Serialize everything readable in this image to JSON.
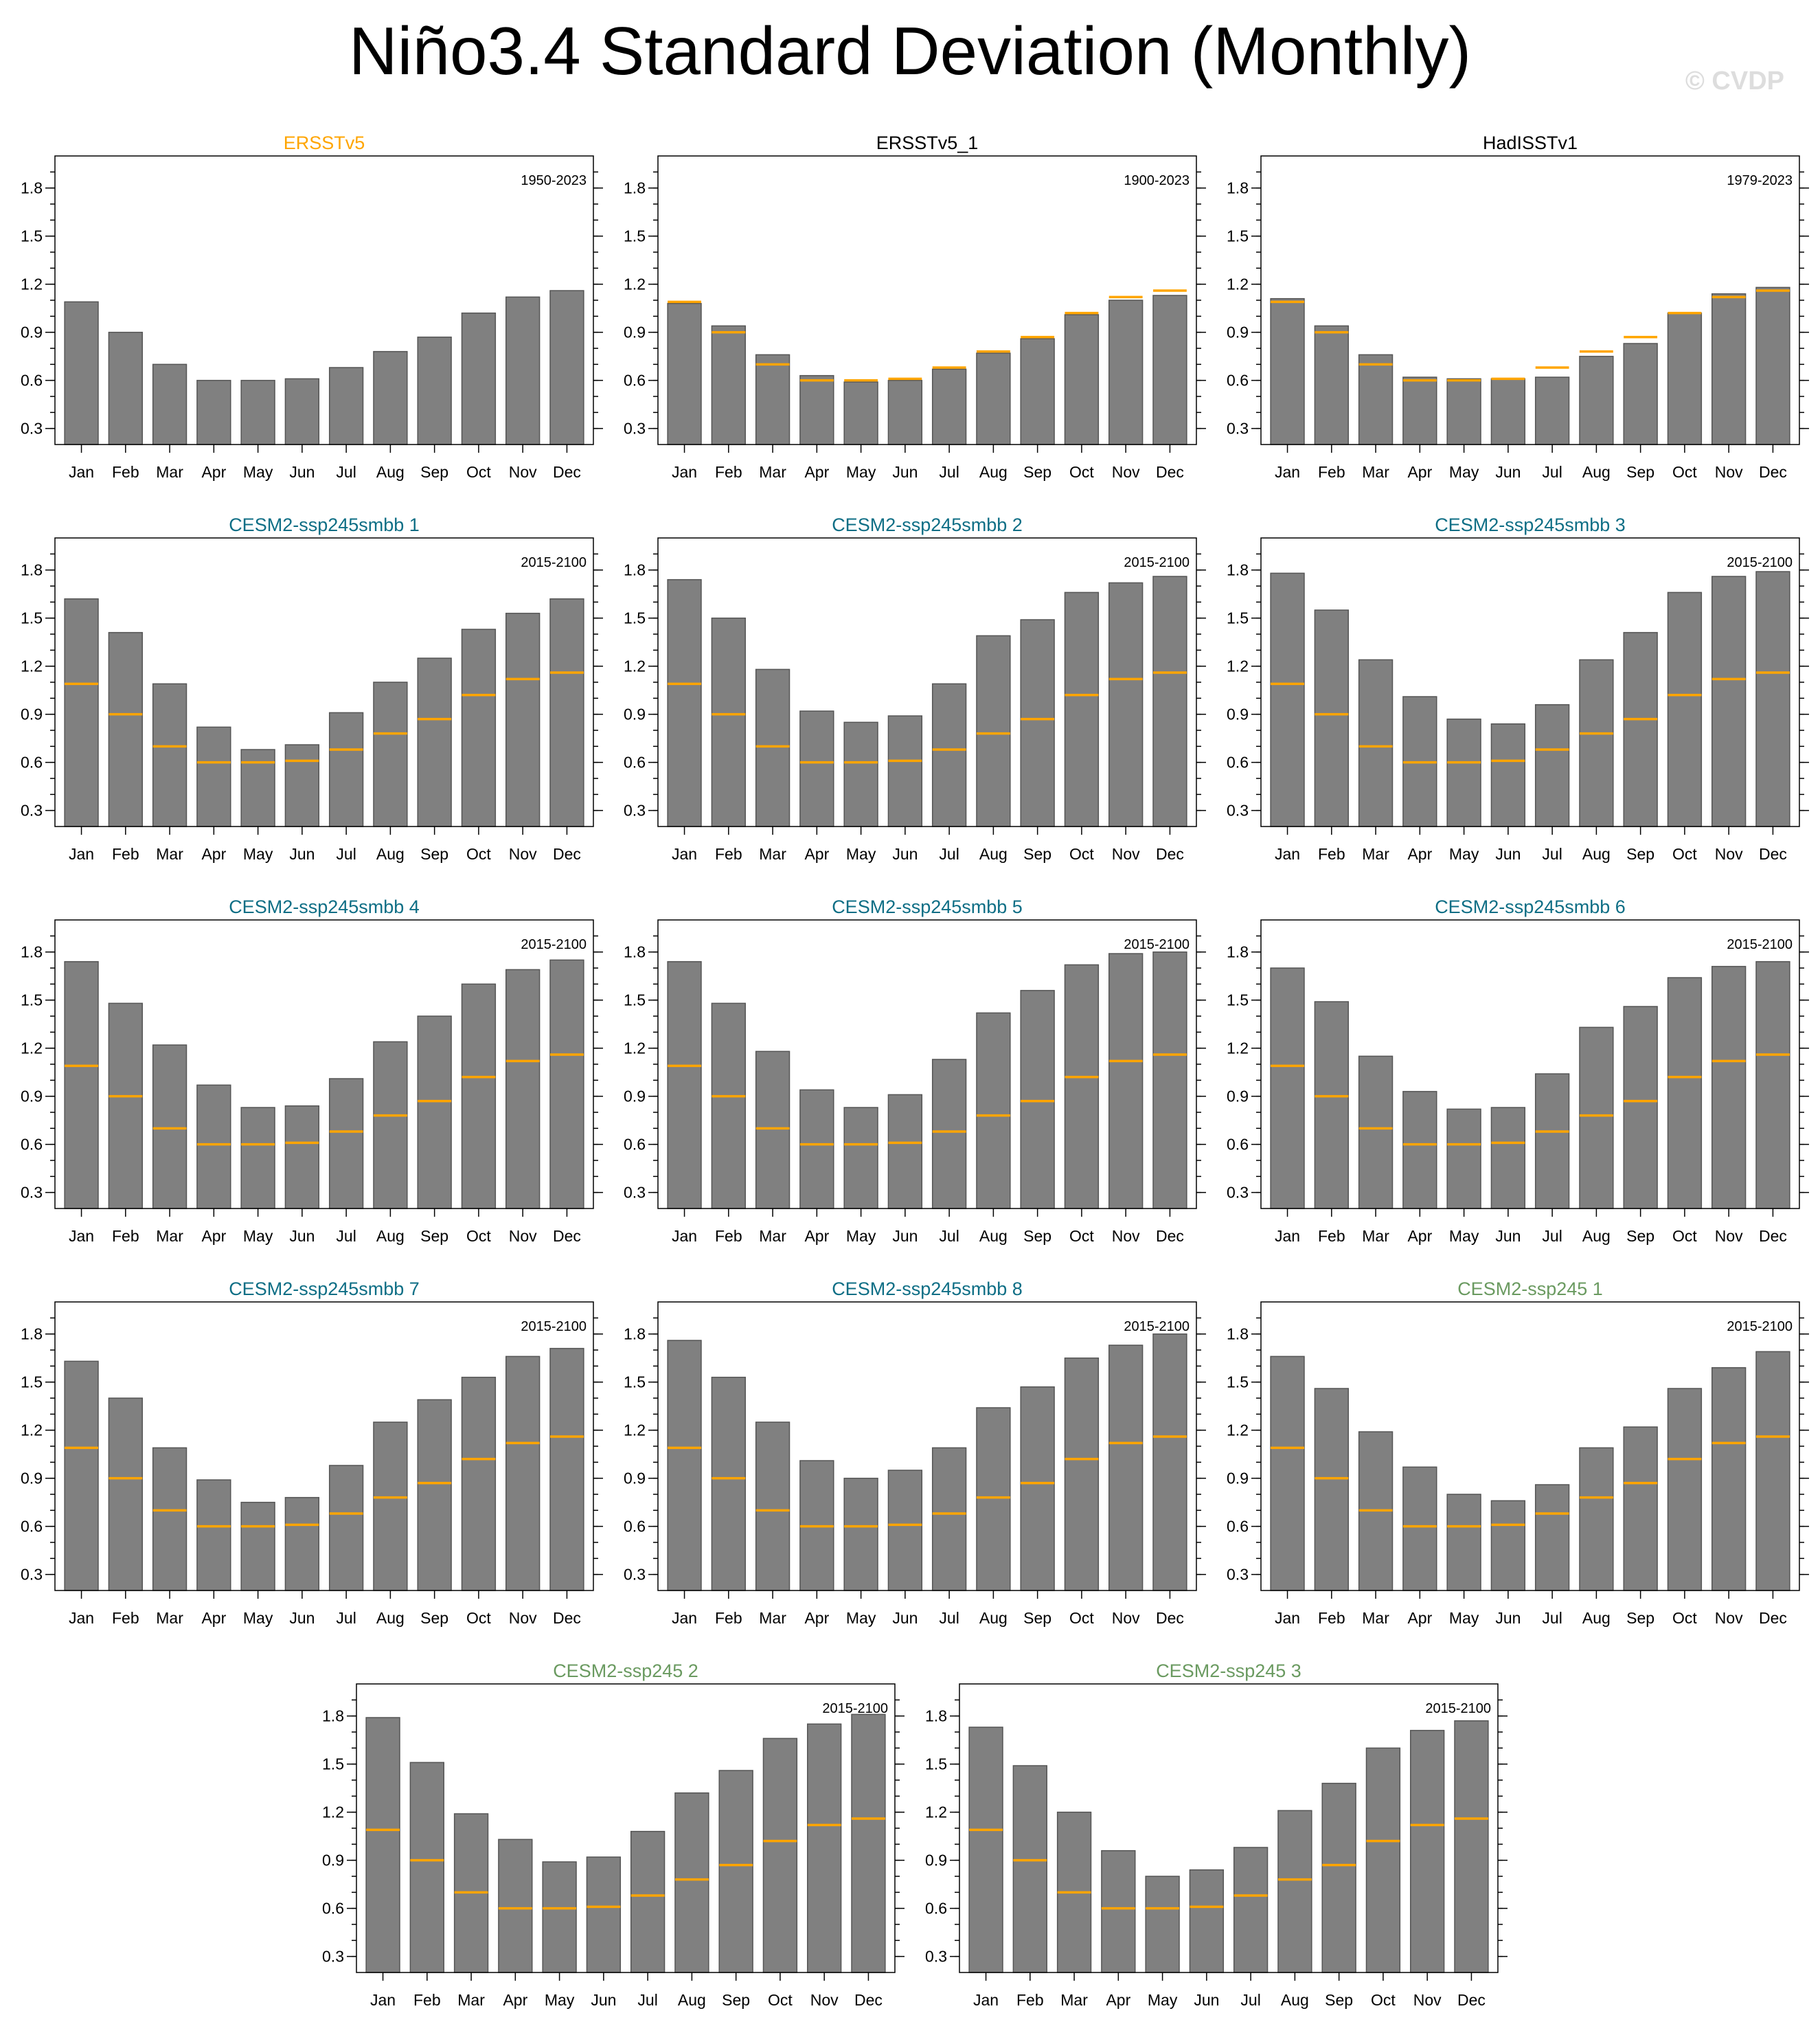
{
  "title": "Niño3.4 Standard Deviation (Monthly)",
  "watermark": "© CVDP",
  "colors": {
    "observation_title": "#ffa500",
    "obs_secondary_title": "#000000",
    "smbb_title": "#0e6e85",
    "ssp245_title": "#6a9a60",
    "bar_fill": "#808080",
    "reference_line": "#ffa500"
  },
  "chart_data": [
    {
      "type": "bar",
      "title": "ERSSTv5",
      "title_color": "#ffa500",
      "period": "1950-2023",
      "categories": [
        "Jan",
        "Feb",
        "Mar",
        "Apr",
        "May",
        "Jun",
        "Jul",
        "Aug",
        "Sep",
        "Oct",
        "Nov",
        "Dec"
      ],
      "values": [
        1.09,
        0.9,
        0.7,
        0.6,
        0.6,
        0.61,
        0.68,
        0.78,
        0.87,
        1.02,
        1.12,
        1.16
      ],
      "reference": null,
      "yticks": [
        "0.3",
        "0.6",
        "0.9",
        "1.2",
        "1.5",
        "1.8"
      ],
      "ylim": [
        0.2,
        2.0
      ]
    },
    {
      "type": "bar",
      "title": "ERSSTv5_1",
      "title_color": "#000000",
      "period": "1900-2023",
      "categories": [
        "Jan",
        "Feb",
        "Mar",
        "Apr",
        "May",
        "Jun",
        "Jul",
        "Aug",
        "Sep",
        "Oct",
        "Nov",
        "Dec"
      ],
      "values": [
        1.08,
        0.94,
        0.76,
        0.63,
        0.59,
        0.6,
        0.67,
        0.77,
        0.86,
        1.01,
        1.1,
        1.13
      ],
      "reference": [
        1.09,
        0.9,
        0.7,
        0.6,
        0.6,
        0.61,
        0.68,
        0.78,
        0.87,
        1.02,
        1.12,
        1.16
      ],
      "yticks": [
        "0.3",
        "0.6",
        "0.9",
        "1.2",
        "1.5",
        "1.8"
      ],
      "ylim": [
        0.2,
        2.0
      ]
    },
    {
      "type": "bar",
      "title": "HadISSTv1",
      "title_color": "#000000",
      "period": "1979-2023",
      "categories": [
        "Jan",
        "Feb",
        "Mar",
        "Apr",
        "May",
        "Jun",
        "Jul",
        "Aug",
        "Sep",
        "Oct",
        "Nov",
        "Dec"
      ],
      "values": [
        1.11,
        0.94,
        0.76,
        0.62,
        0.61,
        0.61,
        0.62,
        0.75,
        0.83,
        1.02,
        1.14,
        1.18
      ],
      "reference": [
        1.09,
        0.9,
        0.7,
        0.6,
        0.6,
        0.61,
        0.68,
        0.78,
        0.87,
        1.02,
        1.12,
        1.16
      ],
      "yticks": [
        "0.3",
        "0.6",
        "0.9",
        "1.2",
        "1.5",
        "1.8"
      ],
      "ylim": [
        0.2,
        2.0
      ]
    },
    {
      "type": "bar",
      "title": "CESM2-ssp245smbb 1",
      "title_color": "#0e6e85",
      "period": "2015-2100",
      "categories": [
        "Jan",
        "Feb",
        "Mar",
        "Apr",
        "May",
        "Jun",
        "Jul",
        "Aug",
        "Sep",
        "Oct",
        "Nov",
        "Dec"
      ],
      "values": [
        1.62,
        1.41,
        1.09,
        0.82,
        0.68,
        0.71,
        0.91,
        1.1,
        1.25,
        1.43,
        1.53,
        1.62
      ],
      "reference": [
        1.09,
        0.9,
        0.7,
        0.6,
        0.6,
        0.61,
        0.68,
        0.78,
        0.87,
        1.02,
        1.12,
        1.16
      ],
      "yticks": [
        "0.3",
        "0.6",
        "0.9",
        "1.2",
        "1.5",
        "1.8"
      ],
      "ylim": [
        0.2,
        2.0
      ]
    },
    {
      "type": "bar",
      "title": "CESM2-ssp245smbb 2",
      "title_color": "#0e6e85",
      "period": "2015-2100",
      "categories": [
        "Jan",
        "Feb",
        "Mar",
        "Apr",
        "May",
        "Jun",
        "Jul",
        "Aug",
        "Sep",
        "Oct",
        "Nov",
        "Dec"
      ],
      "values": [
        1.74,
        1.5,
        1.18,
        0.92,
        0.85,
        0.89,
        1.09,
        1.39,
        1.49,
        1.66,
        1.72,
        1.76
      ],
      "reference": [
        1.09,
        0.9,
        0.7,
        0.6,
        0.6,
        0.61,
        0.68,
        0.78,
        0.87,
        1.02,
        1.12,
        1.16
      ],
      "yticks": [
        "0.3",
        "0.6",
        "0.9",
        "1.2",
        "1.5",
        "1.8"
      ],
      "ylim": [
        0.2,
        2.0
      ]
    },
    {
      "type": "bar",
      "title": "CESM2-ssp245smbb 3",
      "title_color": "#0e6e85",
      "period": "2015-2100",
      "categories": [
        "Jan",
        "Feb",
        "Mar",
        "Apr",
        "May",
        "Jun",
        "Jul",
        "Aug",
        "Sep",
        "Oct",
        "Nov",
        "Dec"
      ],
      "values": [
        1.78,
        1.55,
        1.24,
        1.01,
        0.87,
        0.84,
        0.96,
        1.24,
        1.41,
        1.66,
        1.76,
        1.79
      ],
      "reference": [
        1.09,
        0.9,
        0.7,
        0.6,
        0.6,
        0.61,
        0.68,
        0.78,
        0.87,
        1.02,
        1.12,
        1.16
      ],
      "yticks": [
        "0.3",
        "0.6",
        "0.9",
        "1.2",
        "1.5",
        "1.8"
      ],
      "ylim": [
        0.2,
        2.0
      ]
    },
    {
      "type": "bar",
      "title": "CESM2-ssp245smbb 4",
      "title_color": "#0e6e85",
      "period": "2015-2100",
      "categories": [
        "Jan",
        "Feb",
        "Mar",
        "Apr",
        "May",
        "Jun",
        "Jul",
        "Aug",
        "Sep",
        "Oct",
        "Nov",
        "Dec"
      ],
      "values": [
        1.74,
        1.48,
        1.22,
        0.97,
        0.83,
        0.84,
        1.01,
        1.24,
        1.4,
        1.6,
        1.69,
        1.75
      ],
      "reference": [
        1.09,
        0.9,
        0.7,
        0.6,
        0.6,
        0.61,
        0.68,
        0.78,
        0.87,
        1.02,
        1.12,
        1.16
      ],
      "yticks": [
        "0.3",
        "0.6",
        "0.9",
        "1.2",
        "1.5",
        "1.8"
      ],
      "ylim": [
        0.2,
        2.0
      ]
    },
    {
      "type": "bar",
      "title": "CESM2-ssp245smbb 5",
      "title_color": "#0e6e85",
      "period": "2015-2100",
      "categories": [
        "Jan",
        "Feb",
        "Mar",
        "Apr",
        "May",
        "Jun",
        "Jul",
        "Aug",
        "Sep",
        "Oct",
        "Nov",
        "Dec"
      ],
      "values": [
        1.74,
        1.48,
        1.18,
        0.94,
        0.83,
        0.91,
        1.13,
        1.42,
        1.56,
        1.72,
        1.79,
        1.8
      ],
      "reference": [
        1.09,
        0.9,
        0.7,
        0.6,
        0.6,
        0.61,
        0.68,
        0.78,
        0.87,
        1.02,
        1.12,
        1.16
      ],
      "yticks": [
        "0.3",
        "0.6",
        "0.9",
        "1.2",
        "1.5",
        "1.8"
      ],
      "ylim": [
        0.2,
        2.0
      ]
    },
    {
      "type": "bar",
      "title": "CESM2-ssp245smbb 6",
      "title_color": "#0e6e85",
      "period": "2015-2100",
      "categories": [
        "Jan",
        "Feb",
        "Mar",
        "Apr",
        "May",
        "Jun",
        "Jul",
        "Aug",
        "Sep",
        "Oct",
        "Nov",
        "Dec"
      ],
      "values": [
        1.7,
        1.49,
        1.15,
        0.93,
        0.82,
        0.83,
        1.04,
        1.33,
        1.46,
        1.64,
        1.71,
        1.74
      ],
      "reference": [
        1.09,
        0.9,
        0.7,
        0.6,
        0.6,
        0.61,
        0.68,
        0.78,
        0.87,
        1.02,
        1.12,
        1.16
      ],
      "yticks": [
        "0.3",
        "0.6",
        "0.9",
        "1.2",
        "1.5",
        "1.8"
      ],
      "ylim": [
        0.2,
        2.0
      ]
    },
    {
      "type": "bar",
      "title": "CESM2-ssp245smbb 7",
      "title_color": "#0e6e85",
      "period": "2015-2100",
      "categories": [
        "Jan",
        "Feb",
        "Mar",
        "Apr",
        "May",
        "Jun",
        "Jul",
        "Aug",
        "Sep",
        "Oct",
        "Nov",
        "Dec"
      ],
      "values": [
        1.63,
        1.4,
        1.09,
        0.89,
        0.75,
        0.78,
        0.98,
        1.25,
        1.39,
        1.53,
        1.66,
        1.71
      ],
      "reference": [
        1.09,
        0.9,
        0.7,
        0.6,
        0.6,
        0.61,
        0.68,
        0.78,
        0.87,
        1.02,
        1.12,
        1.16
      ],
      "yticks": [
        "0.3",
        "0.6",
        "0.9",
        "1.2",
        "1.5",
        "1.8"
      ],
      "ylim": [
        0.2,
        2.0
      ]
    },
    {
      "type": "bar",
      "title": "CESM2-ssp245smbb 8",
      "title_color": "#0e6e85",
      "period": "2015-2100",
      "categories": [
        "Jan",
        "Feb",
        "Mar",
        "Apr",
        "May",
        "Jun",
        "Jul",
        "Aug",
        "Sep",
        "Oct",
        "Nov",
        "Dec"
      ],
      "values": [
        1.76,
        1.53,
        1.25,
        1.01,
        0.9,
        0.95,
        1.09,
        1.34,
        1.47,
        1.65,
        1.73,
        1.8
      ],
      "reference": [
        1.09,
        0.9,
        0.7,
        0.6,
        0.6,
        0.61,
        0.68,
        0.78,
        0.87,
        1.02,
        1.12,
        1.16
      ],
      "yticks": [
        "0.3",
        "0.6",
        "0.9",
        "1.2",
        "1.5",
        "1.8"
      ],
      "ylim": [
        0.2,
        2.0
      ]
    },
    {
      "type": "bar",
      "title": "CESM2-ssp245 1",
      "title_color": "#6a9a60",
      "period": "2015-2100",
      "categories": [
        "Jan",
        "Feb",
        "Mar",
        "Apr",
        "May",
        "Jun",
        "Jul",
        "Aug",
        "Sep",
        "Oct",
        "Nov",
        "Dec"
      ],
      "values": [
        1.66,
        1.46,
        1.19,
        0.97,
        0.8,
        0.76,
        0.86,
        1.09,
        1.22,
        1.46,
        1.59,
        1.69
      ],
      "reference": [
        1.09,
        0.9,
        0.7,
        0.6,
        0.6,
        0.61,
        0.68,
        0.78,
        0.87,
        1.02,
        1.12,
        1.16
      ],
      "yticks": [
        "0.3",
        "0.6",
        "0.9",
        "1.2",
        "1.5",
        "1.8"
      ],
      "ylim": [
        0.2,
        2.0
      ]
    },
    {
      "type": "bar",
      "title": "CESM2-ssp245 2",
      "title_color": "#6a9a60",
      "period": "2015-2100",
      "categories": [
        "Jan",
        "Feb",
        "Mar",
        "Apr",
        "May",
        "Jun",
        "Jul",
        "Aug",
        "Sep",
        "Oct",
        "Nov",
        "Dec"
      ],
      "values": [
        1.79,
        1.51,
        1.19,
        1.03,
        0.89,
        0.92,
        1.08,
        1.32,
        1.46,
        1.66,
        1.75,
        1.81
      ],
      "reference": [
        1.09,
        0.9,
        0.7,
        0.6,
        0.6,
        0.61,
        0.68,
        0.78,
        0.87,
        1.02,
        1.12,
        1.16
      ],
      "yticks": [
        "0.3",
        "0.6",
        "0.9",
        "1.2",
        "1.5",
        "1.8"
      ],
      "ylim": [
        0.2,
        2.0
      ]
    },
    {
      "type": "bar",
      "title": "CESM2-ssp245 3",
      "title_color": "#6a9a60",
      "period": "2015-2100",
      "categories": [
        "Jan",
        "Feb",
        "Mar",
        "Apr",
        "May",
        "Jun",
        "Jul",
        "Aug",
        "Sep",
        "Oct",
        "Nov",
        "Dec"
      ],
      "values": [
        1.73,
        1.49,
        1.2,
        0.96,
        0.8,
        0.84,
        0.98,
        1.21,
        1.38,
        1.6,
        1.71,
        1.77
      ],
      "reference": [
        1.09,
        0.9,
        0.7,
        0.6,
        0.6,
        0.61,
        0.68,
        0.78,
        0.87,
        1.02,
        1.12,
        1.16
      ],
      "yticks": [
        "0.3",
        "0.6",
        "0.9",
        "1.2",
        "1.5",
        "1.8"
      ],
      "ylim": [
        0.2,
        2.0
      ]
    }
  ]
}
